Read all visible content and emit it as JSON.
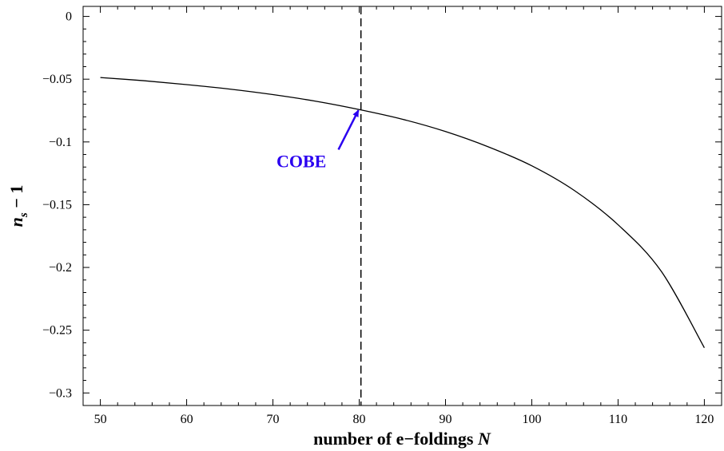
{
  "chart_data": {
    "type": "line",
    "title": "",
    "xlabel": "number of e−foldings",
    "xlabel_var": "N",
    "ylabel_var": "n",
    "ylabel_sub": "s",
    "ylabel_rest": " − 1",
    "xlim": [
      48,
      122
    ],
    "ylim": [
      -0.31,
      0.008
    ],
    "xticks": [
      50,
      60,
      70,
      80,
      90,
      100,
      110,
      120
    ],
    "yticks": [
      0,
      -0.05,
      -0.1,
      -0.15,
      -0.2,
      -0.25,
      -0.3
    ],
    "xtick_labels": [
      "50",
      "60",
      "70",
      "80",
      "90",
      "100",
      "110",
      "120"
    ],
    "ytick_labels": [
      "0",
      "−0.05",
      "−0.1",
      "−0.15",
      "−0.2",
      "−0.25",
      "−0.3"
    ],
    "series": [
      {
        "color": "#000000",
        "x": [
          50,
          55,
          60,
          65,
          70,
          75,
          80,
          85,
          90,
          95,
          100,
          105,
          110,
          115,
          120
        ],
        "y": [
          -0.0487,
          -0.0512,
          -0.0543,
          -0.0579,
          -0.0623,
          -0.0676,
          -0.0742,
          -0.0819,
          -0.0917,
          -0.104,
          -0.119,
          -0.139,
          -0.166,
          -0.203,
          -0.264
        ]
      }
    ],
    "vline": {
      "x": 80.2,
      "style": "dashed",
      "color": "#000000"
    },
    "annotation": {
      "text": "COBE",
      "color": "#2a00f0",
      "point": [
        80.0,
        -0.0735
      ],
      "text_at": [
        73.3,
        -0.115
      ]
    }
  }
}
